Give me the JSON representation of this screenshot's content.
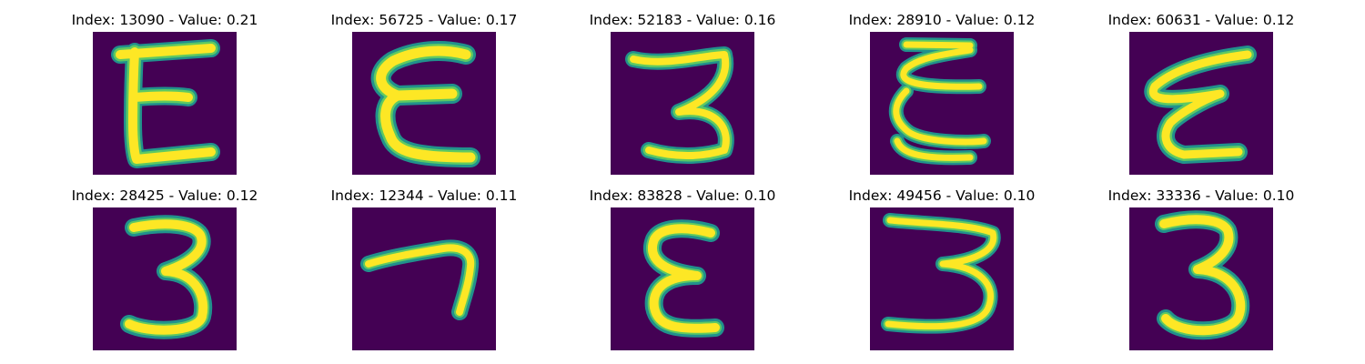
{
  "colors": {
    "background": "#440154",
    "stroke_edge": "#21918c",
    "stroke_mid": "#5ec962",
    "stroke_core": "#fde725"
  },
  "panels": [
    {
      "title": "Index: 13090 - Value: 0.21",
      "glyph": "E"
    },
    {
      "title": "Index: 56725 - Value: 0.17",
      "glyph": "epsilon"
    },
    {
      "title": "Index: 52183 - Value: 0.16",
      "glyph": "three"
    },
    {
      "title": "Index: 28910 - Value: 0.12",
      "glyph": "epsilon-curly"
    },
    {
      "title": "Index: 60631 - Value: 0.12",
      "glyph": "epsilon-slanted"
    },
    {
      "title": "Index: 28425 - Value: 0.12",
      "glyph": "three"
    },
    {
      "title": "Index: 12344 - Value: 0.11",
      "glyph": "seven"
    },
    {
      "title": "Index: 83828 - Value: 0.10",
      "glyph": "epsilon"
    },
    {
      "title": "Index: 49456 - Value: 0.10",
      "glyph": "three-wide"
    },
    {
      "title": "Index: 33336 - Value: 0.10",
      "glyph": "three"
    }
  ]
}
